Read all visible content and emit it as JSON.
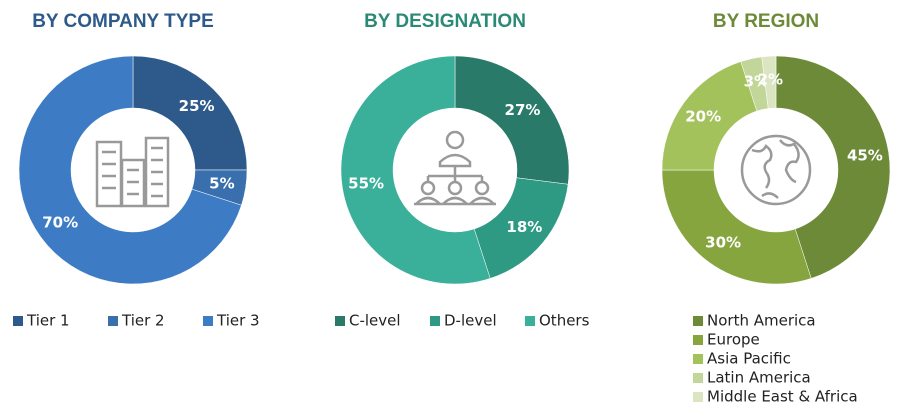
{
  "chart_data": [
    {
      "type": "pie",
      "title": "BY COMPANY TYPE",
      "title_color": "#2d5a8a",
      "legend_layout": "row",
      "categories": [
        "Tier 1",
        "Tier 2",
        "Tier 3"
      ],
      "values": [
        25,
        5,
        70
      ],
      "value_labels": [
        "25%",
        "5%",
        "70%"
      ],
      "colors": [
        "#2d5a8a",
        "#3a6fae",
        "#3d7cc4"
      ]
    },
    {
      "type": "pie",
      "title": "BY DESIGNATION",
      "title_color": "#2a8a76",
      "legend_layout": "row",
      "categories": [
        "C-level",
        "D-level",
        "Others"
      ],
      "values": [
        27,
        18,
        55
      ],
      "value_labels": [
        "27%",
        "18%",
        "55%"
      ],
      "colors": [
        "#2a7a6a",
        "#2f9a84",
        "#3ab09a"
      ]
    },
    {
      "type": "pie",
      "title": "BY REGION",
      "title_color": "#6d8a38",
      "legend_layout": "column",
      "categories": [
        "North America",
        "Europe",
        "Asia Pacific",
        "Latin America",
        "Middle East & Africa"
      ],
      "values": [
        45,
        30,
        20,
        3,
        2
      ],
      "value_labels": [
        "45%",
        "30%",
        "20%",
        "3%",
        "2%"
      ],
      "colors": [
        "#6d8a38",
        "#86a53f",
        "#a3c25c",
        "#c2d69a",
        "#dbe5c2"
      ]
    }
  ]
}
